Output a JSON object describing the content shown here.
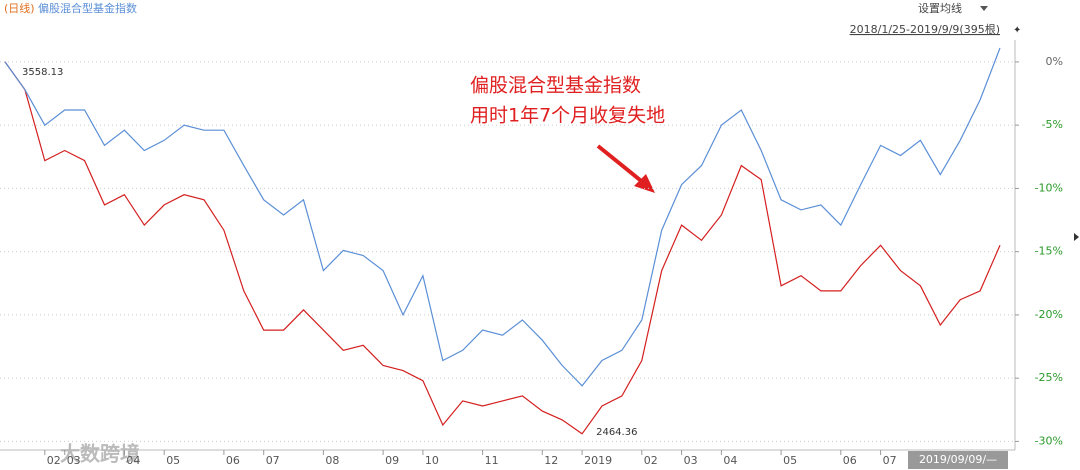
{
  "chart_data": {
    "type": "line",
    "period_label": "(日线)",
    "title": "偏股混合型基金指数",
    "settings_label": "设置均线",
    "range_label": "2018/1/25-2019/9/9(395根)",
    "annotation": [
      "偏股混合型基金指数",
      "用时1年7个月收复失地"
    ],
    "max_label": "3558.13",
    "min_label": "2464.36",
    "cursor_date": "2019/09/09/—",
    "watermark": "大数跨境",
    "categories": [
      null,
      null,
      "02",
      "03",
      null,
      null,
      "04",
      null,
      "05",
      null,
      null,
      "06",
      null,
      "07",
      null,
      null,
      "08",
      null,
      null,
      "09",
      null,
      "10",
      null,
      null,
      "11",
      null,
      null,
      "12",
      null,
      "2019",
      null,
      null,
      "02",
      null,
      "03",
      null,
      "04",
      null,
      null,
      "05",
      null,
      null,
      "06",
      null,
      "07",
      null,
      null,
      null,
      null,
      null,
      null
    ],
    "series": [
      {
        "name": "偏股混合型基金指数",
        "color": "#5b8fd6",
        "values": [
          0,
          -2.2,
          -5.0,
          -3.8,
          -3.8,
          -6.6,
          -5.4,
          -7.0,
          -6.2,
          -5.0,
          -5.4,
          -5.4,
          -8.2,
          -10.9,
          -12.1,
          -10.9,
          -16.5,
          -14.9,
          -15.3,
          -16.5,
          -20.0,
          -16.9,
          -23.6,
          -22.8,
          -21.2,
          -21.6,
          -20.4,
          -22.0,
          -24.0,
          -25.6,
          -23.6,
          -22.8,
          -20.4,
          -13.3,
          -9.7,
          -8.2,
          -5.0,
          -3.8,
          -7.0,
          -10.9,
          -11.7,
          -11.3,
          -12.9,
          -9.7,
          -6.6,
          -7.4,
          -6.2,
          -8.9,
          -6.2,
          -3.0,
          1.1
        ]
      },
      {
        "color": "#d42020",
        "values": [
          0,
          -2.2,
          -7.8,
          -7.0,
          -7.8,
          -11.3,
          -10.5,
          -12.9,
          -11.3,
          -10.5,
          -10.9,
          -13.3,
          -18.1,
          -21.2,
          -21.2,
          -19.6,
          -21.2,
          -22.8,
          -22.4,
          -24.0,
          -24.4,
          -25.2,
          -28.7,
          -26.8,
          -27.2,
          -26.8,
          -26.4,
          -27.6,
          -28.3,
          -29.4,
          -27.2,
          -26.4,
          -23.6,
          -16.5,
          -12.9,
          -14.1,
          -12.1,
          -8.2,
          -9.3,
          -17.7,
          -16.9,
          -18.1,
          -18.1,
          -16.1,
          -14.5,
          -16.5,
          -17.7,
          -20.8,
          -18.8,
          -18.1,
          -14.5
        ]
      }
    ],
    "ylim": [
      1.1,
      -30.6
    ],
    "yticks": [
      {
        "value": 0,
        "label": "0%"
      },
      {
        "value": -5,
        "label": "-5%"
      },
      {
        "value": -10,
        "label": "-10%"
      },
      {
        "value": -15,
        "label": "-15%"
      },
      {
        "value": -20,
        "label": "-20%"
      },
      {
        "value": -25,
        "label": "-25%"
      },
      {
        "value": -30,
        "label": "-30%"
      }
    ],
    "grid": true
  }
}
